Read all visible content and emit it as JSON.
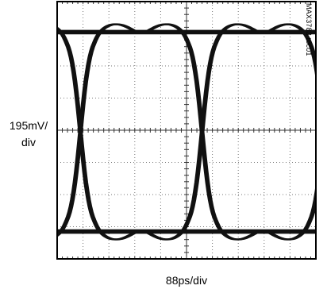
{
  "chart_data": {
    "type": "eye-diagram",
    "x_label": "88ps/div",
    "y_label_line1": "195mV/",
    "y_label_line2": "div",
    "figure_id": "MAX3783 toc01",
    "x_divisions": 10,
    "y_divisions": 8,
    "grid": true,
    "eye": {
      "period_divisions": 4.7,
      "first_crossing_division": 0.9,
      "amplitude_divisions": 6.2,
      "center_level_division": 4.05,
      "rise_time_divisions": 0.9,
      "overshoot_divisions": 0.25
    }
  }
}
